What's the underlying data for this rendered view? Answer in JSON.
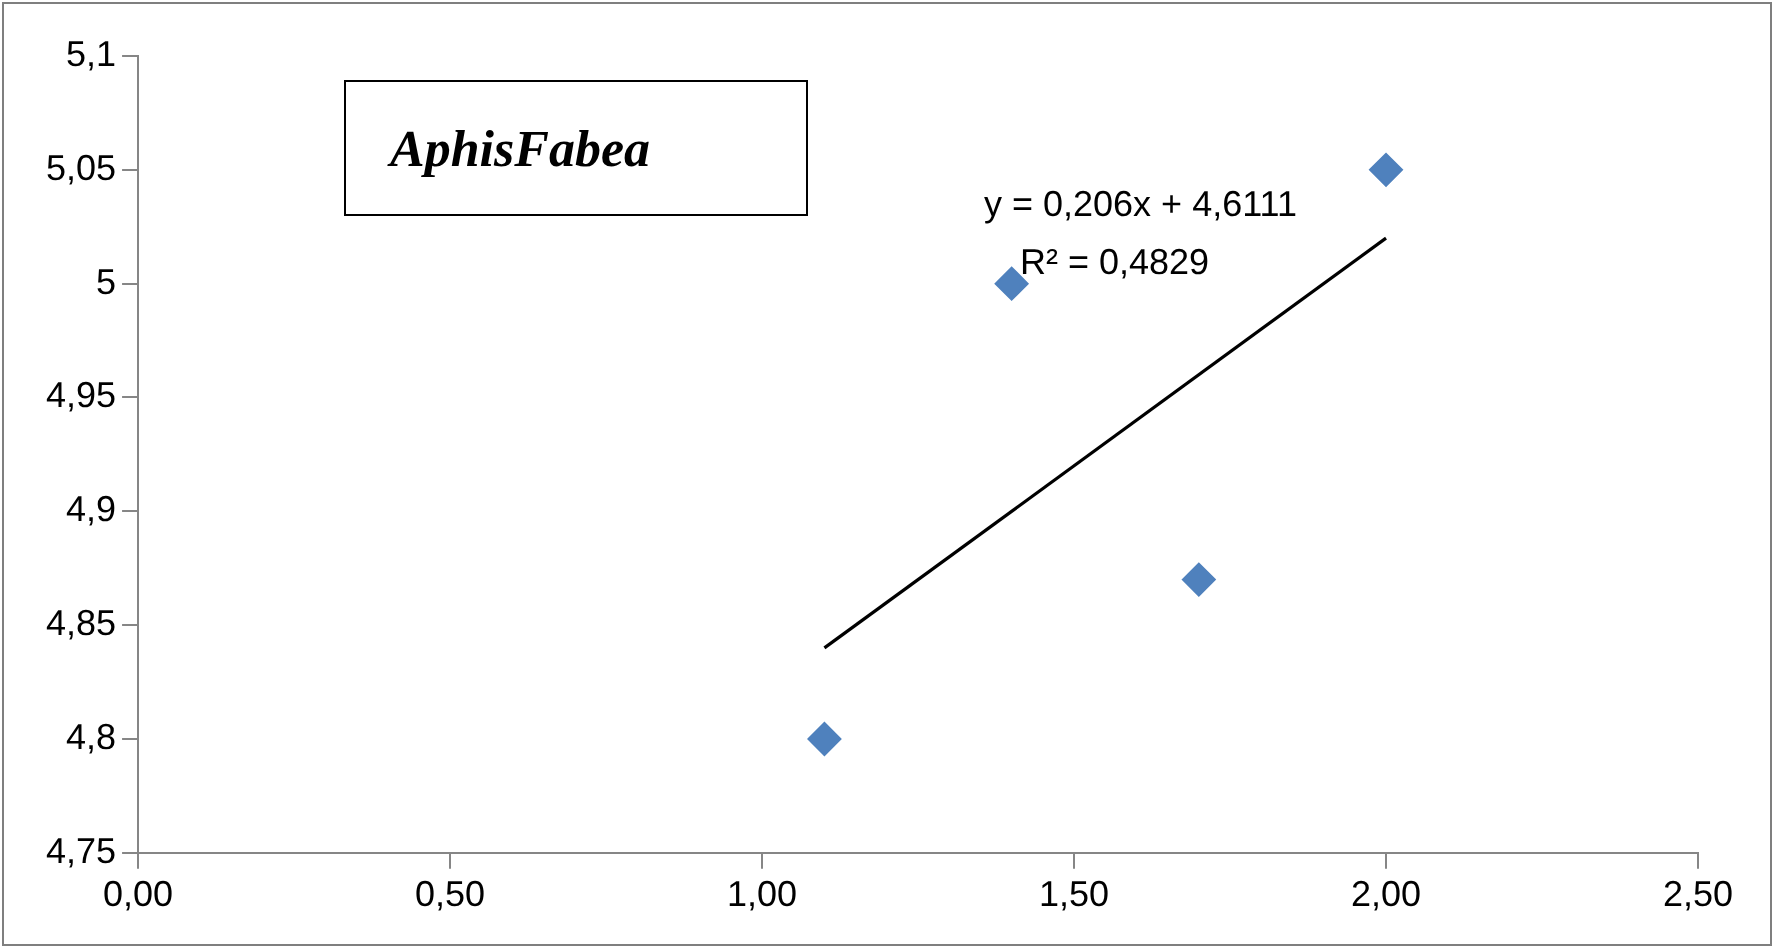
{
  "chart_data": {
    "type": "scatter",
    "title": "AphisFabea",
    "annotations": [
      "y = 0,206x + 4,6111",
      "R² = 0,4829"
    ],
    "grid": false,
    "legend": false,
    "xlim": [
      0,
      2.5
    ],
    "xticks": [
      {
        "value": 0,
        "label": "0,00"
      },
      {
        "value": 0.5,
        "label": "0,50"
      },
      {
        "value": 1,
        "label": "1,00"
      },
      {
        "value": 1.5,
        "label": "1,50"
      },
      {
        "value": 2,
        "label": "2,00"
      },
      {
        "value": 2.5,
        "label": "2,50"
      }
    ],
    "ylim": [
      4.75,
      5.1
    ],
    "yticks": [
      {
        "value": 4.75,
        "label": "4,75"
      },
      {
        "value": 4.8,
        "label": "4,8"
      },
      {
        "value": 4.85,
        "label": "4,85"
      },
      {
        "value": 4.9,
        "label": "4,9"
      },
      {
        "value": 4.95,
        "label": "4,95"
      },
      {
        "value": 5,
        "label": "5"
      },
      {
        "value": 5.05,
        "label": "5,05"
      },
      {
        "value": 5.1,
        "label": "5,1"
      }
    ],
    "series": [
      {
        "type": "scatter",
        "marker": "diamond",
        "color": "#4f81bd",
        "x": [
          1.1,
          1.4,
          1.7,
          2.0
        ],
        "values": [
          4.8,
          5.0,
          4.87,
          5.05
        ]
      },
      {
        "type": "line",
        "color": "#000000",
        "x": [
          1.1,
          2.0
        ],
        "values": [
          4.84,
          5.02
        ]
      }
    ]
  }
}
